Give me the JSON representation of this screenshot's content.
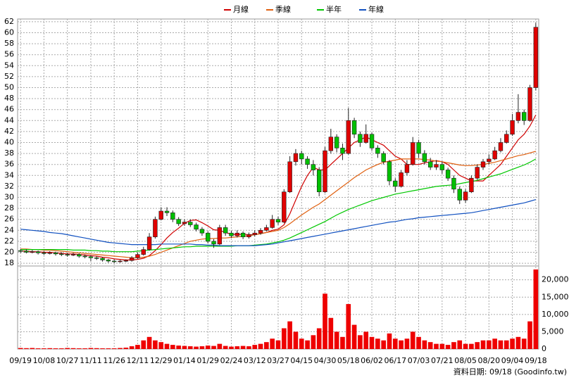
{
  "chart_data": {
    "type": "candlestick",
    "legend": [
      "月線",
      "季線",
      "半年",
      "年線"
    ],
    "footer": "資料日期: 09/18 (Goodinfo.tw)",
    "categories": [
      "09/19",
      null,
      null,
      null,
      "10/08",
      null,
      null,
      null,
      "10/27",
      null,
      null,
      null,
      "11/11",
      null,
      null,
      null,
      "11/26",
      null,
      null,
      null,
      "12/11",
      null,
      null,
      null,
      "12/29",
      null,
      null,
      null,
      "01/14",
      null,
      null,
      null,
      "01/29",
      null,
      null,
      null,
      "02/24",
      null,
      null,
      null,
      "03/12",
      null,
      null,
      null,
      "03/27",
      null,
      null,
      null,
      "04/15",
      null,
      null,
      null,
      "04/30",
      null,
      null,
      null,
      "05/18",
      null,
      null,
      null,
      "06/02",
      null,
      null,
      null,
      "06/17",
      null,
      null,
      null,
      "07/03",
      null,
      null,
      null,
      "07/21",
      null,
      null,
      null,
      "08/05",
      null,
      null,
      null,
      "08/20",
      null,
      null,
      null,
      "09/04",
      null,
      null,
      null,
      "09/18"
    ],
    "open": [
      20.3,
      20.2,
      20.0,
      20.1,
      19.9,
      19.8,
      19.9,
      19.7,
      19.6,
      19.5,
      19.6,
      19.3,
      19.2,
      19.0,
      18.9,
      18.6,
      18.4,
      18.3,
      18.4,
      18.5,
      19.0,
      19.6,
      20.5,
      22.8,
      26.0,
      27.5,
      27.2,
      26.0,
      25.2,
      25.5,
      25.0,
      24.2,
      23.5,
      22.0,
      21.5,
      24.5,
      23.5,
      23.0,
      23.5,
      22.8,
      23.2,
      23.5,
      24.0,
      24.5,
      26.0,
      25.5,
      31.0,
      36.5,
      38.0,
      37.0,
      36.0,
      35.0,
      31.0,
      38.5,
      41.0,
      39.0,
      38.0,
      44.0,
      41.5,
      40.0,
      41.5,
      39.0,
      38.0,
      36.5,
      33.0,
      32.0,
      34.5,
      36.0,
      40.0,
      38.0,
      36.5,
      35.5,
      36.0,
      35.0,
      33.5,
      31.5,
      29.5,
      31.0,
      33.5,
      35.5,
      36.5,
      37.0,
      38.5,
      40.0,
      41.5,
      44.0,
      45.5,
      44.0,
      50.0
    ],
    "high": [
      20.6,
      20.5,
      20.4,
      20.3,
      20.2,
      20.2,
      20.1,
      20.0,
      19.9,
      19.9,
      19.8,
      19.6,
      19.5,
      19.3,
      19.1,
      18.8,
      18.7,
      18.6,
      18.7,
      19.3,
      20.0,
      21.0,
      23.5,
      26.5,
      28.2,
      28.2,
      27.6,
      26.4,
      26.0,
      26.0,
      25.4,
      24.6,
      23.8,
      22.4,
      25.0,
      25.0,
      23.9,
      24.0,
      23.8,
      23.6,
      24.0,
      24.4,
      25.0,
      26.8,
      26.5,
      31.5,
      37.5,
      38.8,
      38.5,
      37.5,
      36.8,
      35.5,
      39.2,
      42.5,
      41.5,
      39.8,
      46.3,
      44.5,
      42.0,
      43.3,
      41.8,
      39.5,
      38.4,
      36.8,
      33.5,
      35.0,
      36.8,
      41.0,
      40.5,
      38.6,
      37.2,
      36.8,
      36.5,
      35.4,
      34.0,
      32.0,
      31.5,
      34.0,
      36.0,
      37.0,
      37.8,
      39.2,
      40.8,
      42.2,
      45.2,
      48.8,
      46.0,
      50.5,
      61.8
    ],
    "low": [
      19.9,
      19.8,
      19.8,
      19.6,
      19.5,
      19.6,
      19.4,
      19.3,
      19.2,
      19.3,
      19.0,
      18.9,
      18.4,
      18.6,
      18.3,
      18.1,
      18.0,
      18.1,
      18.2,
      18.3,
      18.8,
      19.4,
      20.3,
      22.5,
      25.8,
      26.6,
      25.5,
      24.8,
      24.8,
      24.6,
      23.8,
      23.0,
      21.6,
      20.8,
      21.3,
      23.0,
      22.6,
      22.7,
      22.4,
      22.5,
      22.9,
      23.2,
      23.8,
      24.3,
      25.0,
      25.3,
      30.8,
      35.8,
      36.0,
      35.2,
      34.0,
      30.2,
      30.8,
      38.0,
      38.2,
      36.8,
      37.8,
      40.8,
      39.2,
      39.8,
      38.5,
      37.2,
      36.0,
      32.2,
      31.0,
      31.8,
      34.0,
      35.8,
      37.2,
      36.0,
      35.0,
      35.0,
      34.3,
      33.0,
      30.8,
      28.8,
      29.0,
      30.8,
      33.2,
      35.0,
      36.0,
      36.8,
      38.2,
      39.8,
      41.2,
      43.5,
      43.2,
      43.8,
      49.5
    ],
    "close": [
      20.2,
      20.0,
      20.1,
      19.9,
      19.8,
      19.9,
      19.7,
      19.6,
      19.5,
      19.6,
      19.3,
      19.2,
      19.0,
      18.9,
      18.6,
      18.4,
      18.3,
      18.4,
      18.5,
      19.0,
      19.6,
      20.5,
      22.8,
      26.0,
      27.5,
      27.2,
      26.0,
      25.2,
      25.5,
      25.0,
      24.2,
      23.5,
      22.0,
      21.5,
      24.5,
      23.5,
      23.0,
      23.5,
      22.8,
      23.2,
      23.5,
      24.0,
      24.5,
      26.0,
      25.5,
      31.0,
      36.5,
      38.0,
      37.0,
      36.0,
      35.0,
      31.0,
      38.5,
      41.0,
      39.0,
      38.0,
      44.0,
      41.5,
      40.0,
      41.5,
      39.0,
      38.0,
      36.5,
      33.0,
      32.0,
      34.5,
      36.0,
      40.0,
      38.0,
      36.5,
      35.5,
      36.0,
      35.0,
      33.5,
      31.5,
      29.5,
      31.0,
      33.5,
      35.5,
      36.5,
      37.0,
      38.5,
      40.0,
      41.5,
      44.0,
      45.5,
      44.0,
      50.0,
      61.0
    ],
    "up_color": "#e00000",
    "down_color": "#00c000",
    "series": [
      {
        "name": "月線",
        "color": "#d00000",
        "values": [
          20.2,
          20.2,
          20.1,
          20.1,
          20.0,
          20.0,
          19.9,
          19.8,
          19.7,
          19.7,
          19.6,
          19.5,
          19.4,
          19.3,
          19.1,
          19.0,
          18.8,
          18.7,
          18.6,
          18.6,
          18.7,
          18.9,
          19.4,
          20.3,
          21.4,
          22.6,
          23.6,
          24.4,
          25.3,
          25.8,
          25.9,
          25.4,
          24.8,
          24.1,
          24.0,
          23.6,
          23.3,
          23.2,
          23.3,
          23.2,
          23.2,
          23.4,
          23.6,
          24.0,
          24.2,
          25.0,
          27.0,
          29.5,
          32.0,
          34.0,
          35.5,
          35.0,
          35.0,
          36.0,
          37.0,
          38.0,
          39.0,
          40.0,
          40.5,
          41.0,
          40.5,
          40.0,
          39.5,
          38.5,
          37.5,
          37.0,
          36.0,
          36.0,
          36.0,
          36.3,
          36.5,
          36.7,
          36.5,
          36.0,
          35.0,
          34.0,
          33.5,
          33.0,
          33.0,
          33.0,
          34.0,
          35.0,
          36.0,
          37.5,
          39.0,
          40.5,
          41.5,
          43.0,
          45.0
        ]
      },
      {
        "name": "季線",
        "color": "#e06010",
        "values": [
          20.6,
          20.6,
          20.5,
          20.5,
          20.4,
          20.4,
          20.3,
          20.2,
          20.1,
          20.0,
          19.9,
          19.8,
          19.7,
          19.6,
          19.5,
          19.4,
          19.3,
          19.2,
          19.1,
          19.0,
          19.0,
          19.1,
          19.3,
          19.6,
          20.0,
          20.4,
          20.8,
          21.2,
          21.6,
          22.0,
          22.2,
          22.4,
          22.5,
          22.5,
          22.6,
          22.6,
          22.7,
          22.8,
          22.9,
          23.0,
          23.2,
          23.4,
          23.6,
          23.8,
          24.0,
          24.5,
          25.2,
          26.0,
          26.8,
          27.5,
          28.2,
          28.8,
          29.6,
          30.4,
          31.2,
          32.0,
          32.8,
          33.6,
          34.3,
          35.0,
          35.5,
          36.0,
          36.4,
          36.6,
          36.8,
          37.0,
          37.0,
          37.0,
          37.0,
          36.9,
          36.8,
          36.6,
          36.5,
          36.3,
          36.1,
          35.9,
          35.8,
          35.8,
          35.9,
          36.0,
          36.2,
          36.4,
          36.7,
          37.0,
          37.3,
          37.6,
          37.8,
          38.1,
          38.4
        ]
      },
      {
        "name": "半年",
        "color": "#00c800",
        "values": [
          20.5,
          20.5,
          20.5,
          20.5,
          20.5,
          20.5,
          20.5,
          20.5,
          20.5,
          20.4,
          20.4,
          20.4,
          20.3,
          20.3,
          20.2,
          20.2,
          20.1,
          20.1,
          20.1,
          20.1,
          20.2,
          20.3,
          20.4,
          20.5,
          20.6,
          20.7,
          20.8,
          20.9,
          21.0,
          21.0,
          21.1,
          21.1,
          21.1,
          21.1,
          21.1,
          21.1,
          21.1,
          21.2,
          21.2,
          21.2,
          21.3,
          21.4,
          21.5,
          21.7,
          21.9,
          22.2,
          22.6,
          23.1,
          23.6,
          24.1,
          24.6,
          25.1,
          25.6,
          26.2,
          26.8,
          27.3,
          27.8,
          28.2,
          28.6,
          29.0,
          29.4,
          29.7,
          30.0,
          30.3,
          30.6,
          30.8,
          31.0,
          31.2,
          31.4,
          31.6,
          31.8,
          32.0,
          32.1,
          32.2,
          32.3,
          32.5,
          32.7,
          32.9,
          33.1,
          33.4,
          33.7,
          34.0,
          34.3,
          34.7,
          35.1,
          35.5,
          35.9,
          36.4,
          37.0
        ]
      },
      {
        "name": "年線",
        "color": "#1050c0",
        "values": [
          24.2,
          24.1,
          24.0,
          23.9,
          23.8,
          23.6,
          23.5,
          23.4,
          23.2,
          23.0,
          22.8,
          22.6,
          22.4,
          22.2,
          22.0,
          21.8,
          21.7,
          21.6,
          21.5,
          21.4,
          21.4,
          21.4,
          21.4,
          21.4,
          21.5,
          21.5,
          21.5,
          21.5,
          21.5,
          21.5,
          21.4,
          21.4,
          21.3,
          21.3,
          21.2,
          21.2,
          21.2,
          21.2,
          21.2,
          21.2,
          21.2,
          21.3,
          21.4,
          21.5,
          21.7,
          21.9,
          22.1,
          22.3,
          22.5,
          22.7,
          22.9,
          23.1,
          23.3,
          23.5,
          23.7,
          23.9,
          24.1,
          24.3,
          24.5,
          24.7,
          24.9,
          25.1,
          25.3,
          25.5,
          25.6,
          25.8,
          26.0,
          26.1,
          26.3,
          26.4,
          26.5,
          26.6,
          26.7,
          26.8,
          26.9,
          27.0,
          27.1,
          27.2,
          27.4,
          27.6,
          27.8,
          28.0,
          28.2,
          28.4,
          28.6,
          28.8,
          29.0,
          29.3,
          29.6
        ]
      }
    ],
    "ylim": [
      17.5,
      62.5
    ],
    "yticks": [
      18,
      20,
      22,
      24,
      26,
      28,
      30,
      32,
      34,
      36,
      38,
      40,
      42,
      44,
      46,
      48,
      50,
      52,
      54,
      56,
      58,
      60,
      62
    ],
    "volume": [
      300,
      250,
      300,
      200,
      200,
      250,
      200,
      200,
      300,
      250,
      200,
      200,
      300,
      250,
      200,
      200,
      200,
      300,
      400,
      800,
      1200,
      2500,
      3500,
      2500,
      2000,
      1500,
      1200,
      1000,
      900,
      800,
      700,
      800,
      1000,
      900,
      1500,
      900,
      700,
      800,
      900,
      800,
      1200,
      1500,
      2000,
      3000,
      2500,
      6000,
      8000,
      5000,
      3000,
      2500,
      4000,
      6000,
      16000,
      9000,
      5000,
      3500,
      13000,
      7000,
      4000,
      5000,
      3500,
      3000,
      2500,
      4500,
      3000,
      2500,
      3000,
      5000,
      3500,
      2500,
      2000,
      1500,
      1500,
      1200,
      2000,
      2500,
      1500,
      1500,
      2000,
      2500,
      2500,
      3000,
      2500,
      2500,
      3000,
      3500,
      3000,
      8000,
      23000
    ],
    "volume_color": "#ee0000",
    "y2lim": [
      0,
      24000
    ],
    "y2ticks": [
      0,
      {
        "value": 5000,
        "label": "5,000"
      },
      {
        "value": 10000,
        "label": "10,000"
      },
      {
        "value": 15000,
        "label": "15,000"
      },
      {
        "value": 20000,
        "label": "20,000"
      }
    ],
    "grid": true
  }
}
